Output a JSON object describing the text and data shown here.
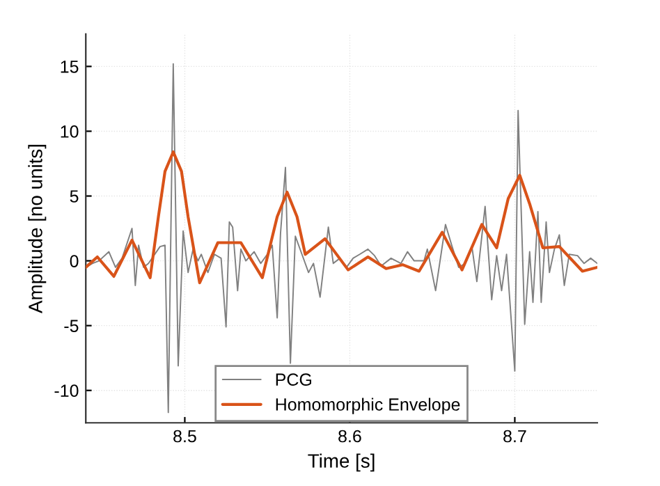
{
  "chart_data": {
    "type": "line",
    "xlabel": "Time [s]",
    "ylabel": "Amplitude [no units]",
    "xlim": [
      8.44,
      8.75
    ],
    "ylim": [
      -12.5,
      17.5
    ],
    "xticks": [
      8.5,
      8.6,
      8.7
    ],
    "yticks": [
      -10,
      -5,
      0,
      5,
      10,
      15
    ],
    "grid": true,
    "legend": "bottom",
    "line_style": "solid",
    "marker": "none",
    "series": [
      {
        "name": "PCG",
        "color": "#808080",
        "x": [
          8.44,
          8.444,
          8.448,
          8.454,
          8.458,
          8.462,
          8.468,
          8.47,
          8.472,
          8.475,
          8.478,
          8.485,
          8.488,
          8.49,
          8.493,
          8.496,
          8.499,
          8.502,
          8.505,
          8.508,
          8.51,
          8.514,
          8.518,
          8.522,
          8.525,
          8.527,
          8.529,
          8.532,
          8.534,
          8.537,
          8.542,
          8.546,
          8.55,
          8.553,
          8.556,
          8.558,
          8.561,
          8.564,
          8.567,
          8.571,
          8.575,
          8.578,
          8.582,
          8.587,
          8.59,
          8.594,
          8.598,
          8.602,
          8.606,
          8.611,
          8.615,
          8.619,
          8.625,
          8.631,
          8.635,
          8.639,
          8.645,
          8.647,
          8.652,
          8.658,
          8.662,
          8.666,
          8.67,
          8.674,
          8.677,
          8.682,
          8.686,
          8.689,
          8.692,
          8.695,
          8.7,
          8.702,
          8.706,
          8.709,
          8.711,
          8.714,
          8.716,
          8.719,
          8.721,
          8.724,
          8.727,
          8.73,
          8.733,
          8.738,
          8.742,
          8.746,
          8.75
        ],
        "values": [
          -0.5,
          -0.2,
          0.0,
          0.7,
          -0.5,
          0.2,
          2.5,
          -1.9,
          1.2,
          -0.5,
          -0.2,
          1.1,
          1.2,
          -11.7,
          15.2,
          -8.1,
          2.3,
          -0.9,
          0.9,
          0.0,
          0.5,
          -0.9,
          0.5,
          0.2,
          -5.1,
          3.0,
          2.6,
          -2.3,
          0.9,
          0.0,
          0.7,
          -0.2,
          0.5,
          1.2,
          -4.4,
          2.1,
          7.2,
          -7.9,
          1.9,
          0.5,
          -0.9,
          -0.2,
          -2.8,
          2.6,
          -0.2,
          0.2,
          -0.5,
          0.2,
          0.5,
          0.9,
          0.4,
          -0.4,
          0.2,
          -0.2,
          0.7,
          0.0,
          0.0,
          0.9,
          -2.3,
          2.8,
          1.1,
          -0.5,
          -0.2,
          1.1,
          -1.6,
          4.2,
          -3.0,
          0.4,
          -2.3,
          0.5,
          -8.5,
          11.6,
          -4.9,
          0.7,
          -3.2,
          3.8,
          -3.2,
          3.0,
          -0.9,
          0.9,
          2.0,
          -1.9,
          0.5,
          0.4,
          -0.2,
          0.2,
          -0.2
        ]
      },
      {
        "name": "Homomorphic Envelope",
        "color": "#d95319",
        "x": [
          8.44,
          8.447,
          8.457,
          8.468,
          8.479,
          8.484,
          8.488,
          8.493,
          8.498,
          8.502,
          8.509,
          8.52,
          8.534,
          8.547,
          8.556,
          8.562,
          8.568,
          8.573,
          8.585,
          8.599,
          8.611,
          8.622,
          8.632,
          8.642,
          8.656,
          8.668,
          8.68,
          8.689,
          8.696,
          8.703,
          8.709,
          8.717,
          8.727,
          8.741,
          8.75
        ],
        "values": [
          -0.5,
          0.3,
          -1.2,
          1.6,
          -1.3,
          3.4,
          6.9,
          8.4,
          6.9,
          3.4,
          -1.7,
          1.4,
          1.4,
          -1.3,
          3.4,
          5.3,
          3.4,
          0.5,
          1.7,
          -0.7,
          0.3,
          -0.6,
          -0.3,
          -0.8,
          2.2,
          -0.7,
          2.8,
          1.0,
          4.8,
          6.6,
          4.4,
          1.0,
          1.1,
          -0.8,
          -0.5
        ]
      }
    ]
  }
}
